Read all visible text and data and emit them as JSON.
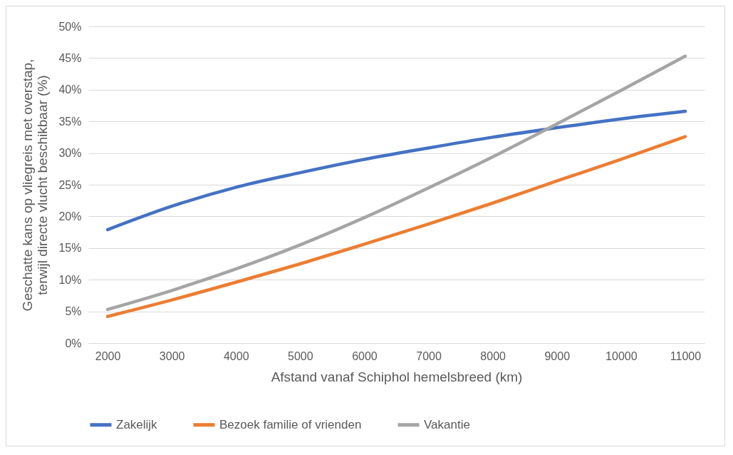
{
  "chart_data": {
    "type": "line",
    "xlabel": "Afstand vanaf Schiphol hemelsbreed (km)",
    "ylabel": "Geschatte kans op vliegreis met overstap, terwijl directe vlucht beschikbaar (%)",
    "categories": [
      "2000",
      "3000",
      "4000",
      "5000",
      "6000",
      "7000",
      "8000",
      "9000",
      "10000",
      "11000"
    ],
    "series": [
      {
        "name": "Zakelijk",
        "color": "#4472c4",
        "values": [
          17.9,
          21.6,
          24.6,
          26.9,
          29.0,
          30.8,
          32.5,
          34.0,
          35.4,
          36.6
        ]
      },
      {
        "name": "Bezoek familie of vrienden",
        "color": "#ed7d31",
        "values": [
          4.2,
          6.8,
          9.6,
          12.5,
          15.6,
          18.8,
          22.1,
          25.6,
          29.0,
          32.6
        ]
      },
      {
        "name": "Vakantie",
        "color": "#a5a5a5",
        "values": [
          5.3,
          8.3,
          11.7,
          15.5,
          19.8,
          24.5,
          29.4,
          34.6,
          39.9,
          45.3
        ]
      }
    ],
    "ylim": [
      0,
      50
    ],
    "yticks": [
      {
        "value": 0,
        "label": "0%"
      },
      {
        "value": 5,
        "label": "5%"
      },
      {
        "value": 10,
        "label": "10%"
      },
      {
        "value": 15,
        "label": "15%"
      },
      {
        "value": 20,
        "label": "20%"
      },
      {
        "value": 25,
        "label": "25%"
      },
      {
        "value": 30,
        "label": "30%"
      },
      {
        "value": 35,
        "label": "35%"
      },
      {
        "value": 40,
        "label": "40%"
      },
      {
        "value": 45,
        "label": "45%"
      },
      {
        "value": 50,
        "label": "50%"
      }
    ],
    "grid": "y",
    "legend": "bottom",
    "line_style": "solid",
    "marker": "none"
  }
}
